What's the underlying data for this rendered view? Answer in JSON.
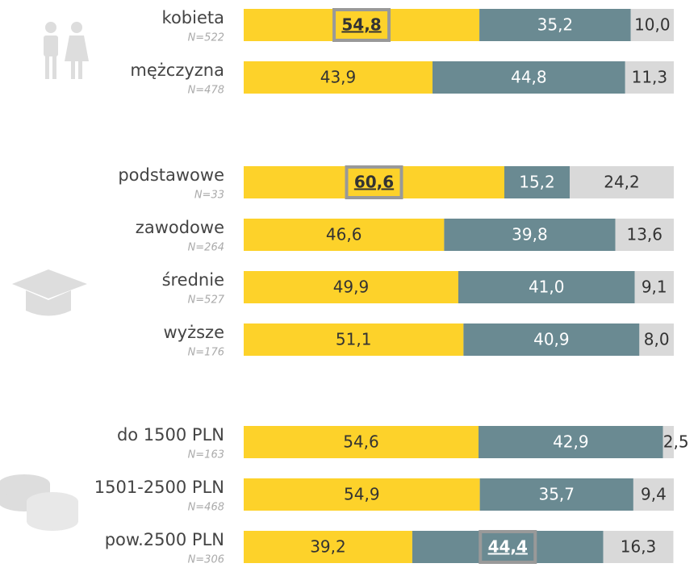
{
  "chart_data": {
    "type": "stacked-bar-horizontal",
    "categories": [
      "kobieta",
      "mężczyzna",
      "podstawowe",
      "zawodowe",
      "średnie",
      "wyższe",
      "do 1500 PLN",
      "1501-2500 PLN",
      "pow.2500 PLN"
    ],
    "n_labels": [
      "N=522",
      "N=478",
      "N=33",
      "N=264",
      "N=527",
      "N=176",
      "N=163",
      "N=468",
      "N=306"
    ],
    "xlim": [
      0,
      100
    ],
    "series": [
      {
        "color": "#fdd22a",
        "label_color": "#333333",
        "values": [
          54.8,
          43.9,
          60.6,
          46.6,
          49.9,
          51.1,
          54.6,
          54.9,
          39.2
        ],
        "value_labels": [
          "54,8",
          "43,9",
          "60,6",
          "46,6",
          "49,9",
          "51,1",
          "54,6",
          "54,9",
          "39,2"
        ],
        "highlighted": [
          true,
          false,
          true,
          false,
          false,
          false,
          false,
          false,
          false
        ]
      },
      {
        "color": "#6a8a92",
        "label_color": "#ffffff",
        "values": [
          35.2,
          44.8,
          15.2,
          39.8,
          41.0,
          40.9,
          42.9,
          35.7,
          44.4
        ],
        "value_labels": [
          "35,2",
          "44,8",
          "15,2",
          "39,8",
          "41,0",
          "40,9",
          "42,9",
          "35,7",
          "44,4"
        ],
        "highlighted": [
          false,
          false,
          false,
          false,
          false,
          false,
          false,
          false,
          true
        ]
      },
      {
        "color": "#d9d9d9",
        "label_color": "#333333",
        "values": [
          10.0,
          11.3,
          24.2,
          13.6,
          9.1,
          8.0,
          2.5,
          9.4,
          16.3
        ],
        "value_labels": [
          "10,0",
          "11,3",
          "24,2",
          "13,6",
          "9,1",
          "8,0",
          "2,5",
          "9,4",
          "16,3"
        ],
        "highlighted": [
          false,
          false,
          false,
          false,
          false,
          false,
          false,
          false,
          false
        ]
      }
    ]
  }
}
